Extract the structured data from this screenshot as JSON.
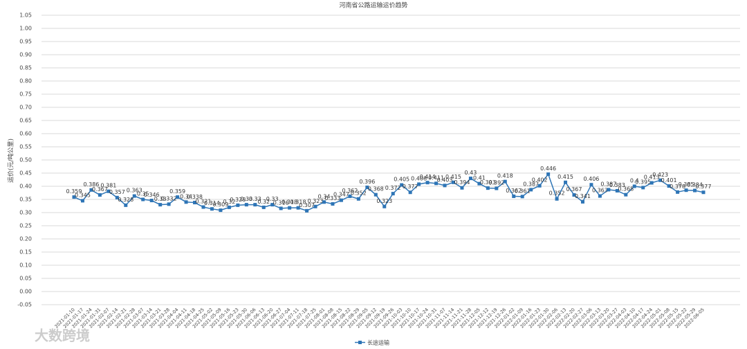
{
  "chart_data": {
    "type": "line",
    "title": "河南省公路运输运价趋势",
    "y_label": "运价(元/吨公里)",
    "watermark": "大数跨境",
    "categories": [
      "2021-01-10",
      "2021-01-17",
      "2021-01-24",
      "2021-01-31",
      "2021-02-07",
      "2021-02-14",
      "2021-02-21",
      "2021-02-28",
      "2021-03-07",
      "2021-03-14",
      "2021-03-21",
      "2021-03-28",
      "2021-04-04",
      "2021-04-11",
      "2021-04-18",
      "2021-04-25",
      "2021-05-02",
      "2021-05-09",
      "2021-05-16",
      "2021-05-23",
      "2021-05-30",
      "2021-06-06",
      "2021-06-13",
      "2021-06-20",
      "2021-06-27",
      "2021-07-04",
      "2021-07-11",
      "2021-07-18",
      "2021-07-25",
      "2021-08-01",
      "2021-08-08",
      "2021-08-15",
      "2021-08-22",
      "2021-08-29",
      "2021-09-05",
      "2021-09-12",
      "2021-09-19",
      "2021-09-26",
      "2021-10-03",
      "2021-10-10",
      "2021-10-17",
      "2021-10-24",
      "2021-10-31",
      "2021-11-07",
      "2021-11-14",
      "2021-11-21",
      "2021-11-28",
      "2021-12-05",
      "2021-12-12",
      "2021-12-19",
      "2021-12-26",
      "2022-01-02",
      "2022-01-09",
      "2022-01-16",
      "2022-01-23",
      "2022-01-30",
      "2022-02-06",
      "2022-02-13",
      "2022-02-20",
      "2022-02-27",
      "2022-03-06",
      "2022-03-13",
      "2022-03-20",
      "2022-03-27",
      "2022-04-03",
      "2022-04-10",
      "2022-04-17",
      "2022-04-24",
      "2022-05-01",
      "2022-05-08",
      "2022-05-15",
      "2022-05-22",
      "2022-05-29",
      "2022-06-05"
    ],
    "series": [
      {
        "name": "长途运输",
        "color": "#2e75b6",
        "values": [
          0.359,
          0.345,
          0.386,
          0.367,
          0.381,
          0.357,
          0.328,
          0.363,
          0.35,
          0.346,
          0.33,
          0.332,
          0.359,
          0.34,
          0.338,
          0.321,
          0.314,
          0.309,
          0.32,
          0.328,
          0.33,
          0.33,
          0.32,
          0.33,
          0.316,
          0.318,
          0.318,
          0.307,
          0.323,
          0.34,
          0.333,
          0.347,
          0.362,
          0.352,
          0.396,
          0.368,
          0.323,
          0.372,
          0.405,
          0.377,
          0.408,
          0.414,
          0.411,
          0.403,
          0.415,
          0.394,
          0.43,
          0.41,
          0.393,
          0.392,
          0.418,
          0.362,
          0.361,
          0.387,
          0.402,
          0.446,
          0.352,
          0.415,
          0.367,
          0.341,
          0.406,
          0.363,
          0.387,
          0.383,
          0.368,
          0.4,
          0.395,
          0.413,
          0.423,
          0.401,
          0.378,
          0.385,
          0.384,
          0.377
        ]
      }
    ],
    "ylim": [
      -0.05,
      1.05
    ],
    "yticks": [
      -0.05,
      {
        "value": 0,
        "label": "0.00"
      },
      0.05,
      {
        "value": 0.1,
        "label": "0.10"
      },
      0.15,
      {
        "value": 0.2,
        "label": "0.20"
      },
      0.25,
      {
        "value": 0.3,
        "label": "0.30"
      },
      0.35,
      {
        "value": 0.4,
        "label": "0.40"
      },
      0.45,
      {
        "value": 0.5,
        "label": "0.50"
      },
      0.55,
      {
        "value": 0.6,
        "label": "0.60"
      },
      0.65,
      {
        "value": 0.7,
        "label": "0.70"
      },
      0.75,
      {
        "value": 0.8,
        "label": "0.80"
      },
      0.85,
      {
        "value": 0.9,
        "label": "0.90"
      },
      0.95,
      {
        "value": 1,
        "label": "1.00"
      },
      1.05
    ],
    "grid": true,
    "legend": "bottom"
  }
}
